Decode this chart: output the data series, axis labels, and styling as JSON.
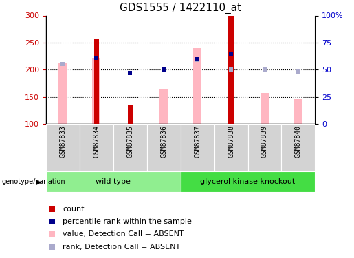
{
  "title": "GDS1555 / 1422110_at",
  "samples": [
    "GSM87833",
    "GSM87834",
    "GSM87835",
    "GSM87836",
    "GSM87837",
    "GSM87838",
    "GSM87839",
    "GSM87840"
  ],
  "groups": [
    {
      "name": "wild type",
      "samples": [
        0,
        1,
        2,
        3
      ],
      "color": "#90EE90"
    },
    {
      "name": "glycerol kinase knockout",
      "samples": [
        4,
        5,
        6,
        7
      ],
      "color": "#44DD44"
    }
  ],
  "red_bars": [
    null,
    258,
    135,
    null,
    null,
    300,
    null,
    null
  ],
  "blue_squares": [
    null,
    222,
    194,
    200,
    220,
    228,
    null,
    null
  ],
  "pink_bars": [
    212,
    222,
    null,
    165,
    240,
    null,
    157,
    146
  ],
  "lavender_squares": [
    210,
    null,
    null,
    200,
    218,
    200,
    200,
    196
  ],
  "ylim": [
    100,
    300
  ],
  "yticks_left": [
    100,
    150,
    200,
    250,
    300
  ],
  "right_tick_positions": [
    100,
    150,
    200,
    250,
    300
  ],
  "right_tick_labels": [
    "0",
    "25",
    "50",
    "75",
    "100%"
  ],
  "ylabel_left_color": "#CC0000",
  "ylabel_right_color": "#0000CC",
  "pink_bar_width": 0.25,
  "red_bar_width": 0.15,
  "pink_bar_color": "#FFB6C1",
  "lavender_color": "#AAAACC",
  "red_bar_color": "#CC0000",
  "blue_square_color": "#00008B",
  "grid_color": "#000000"
}
